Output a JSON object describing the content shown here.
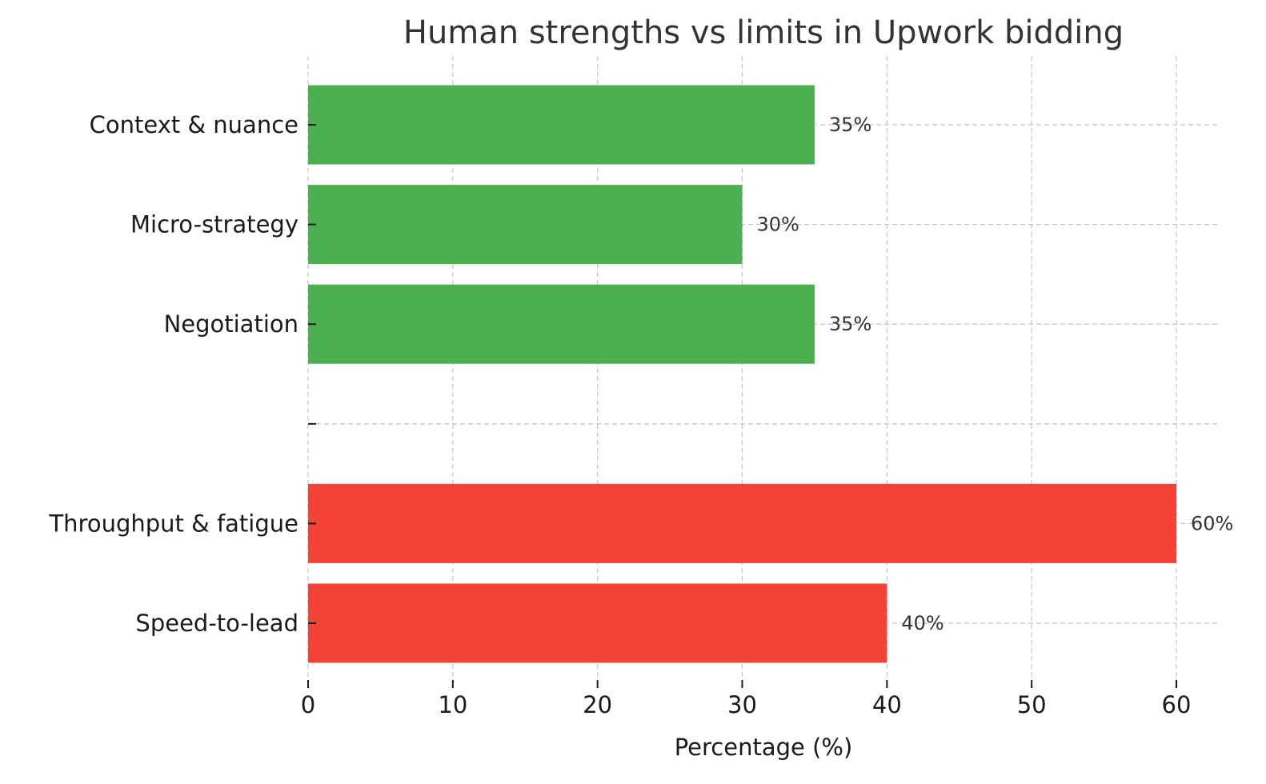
{
  "chart_data": {
    "type": "bar",
    "orientation": "horizontal",
    "title": "Human strengths vs limits in Upwork bidding",
    "xlabel": "Percentage (%)",
    "ylabel": "",
    "xlim": [
      0,
      63
    ],
    "x_ticks": [
      0,
      10,
      20,
      30,
      40,
      50,
      60
    ],
    "grid": true,
    "categories": [
      "Context & nuance",
      "Micro-strategy",
      "Negotiation",
      "",
      "Throughput & fatigue",
      "Speed-to-lead"
    ],
    "values": [
      35,
      30,
      35,
      null,
      60,
      40
    ],
    "data_labels": [
      "35%",
      "30%",
      "35%",
      "",
      "60%",
      "40%"
    ],
    "bar_colors": [
      "#4caf50",
      "#4caf50",
      "#4caf50",
      "",
      "#f44336",
      "#f44336"
    ],
    "groups": [
      {
        "color": "#4caf50",
        "categories": [
          "Context & nuance",
          "Micro-strategy",
          "Negotiation"
        ]
      },
      {
        "color": "#f44336",
        "categories": [
          "Throughput & fatigue",
          "Speed-to-lead"
        ]
      }
    ]
  }
}
